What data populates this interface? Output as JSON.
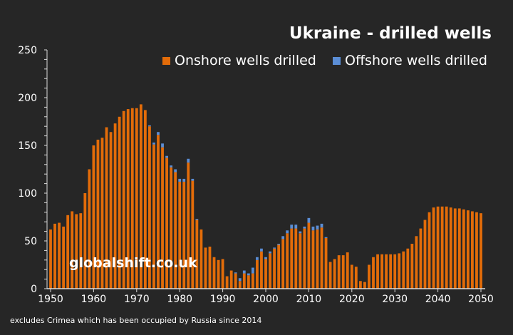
{
  "chart_data": {
    "type": "bar",
    "stacked": true,
    "title": "Ukraine - drilled wells",
    "xlabel": "",
    "ylabel": "",
    "ylim": [
      0,
      250
    ],
    "xlim": [
      1950,
      2050
    ],
    "y_ticks": [
      "0",
      "50",
      "100",
      "150",
      "200",
      "250"
    ],
    "x_ticks": [
      "1950",
      "1960",
      "1970",
      "1980",
      "1990",
      "2000",
      "2010",
      "2020",
      "2030",
      "2040",
      "2050"
    ],
    "grid": false,
    "legend": "top-right",
    "x": [
      1950,
      1951,
      1952,
      1953,
      1954,
      1955,
      1956,
      1957,
      1958,
      1959,
      1960,
      1961,
      1962,
      1963,
      1964,
      1965,
      1966,
      1967,
      1968,
      1969,
      1970,
      1971,
      1972,
      1973,
      1974,
      1975,
      1976,
      1977,
      1978,
      1979,
      1980,
      1981,
      1982,
      1983,
      1984,
      1985,
      1986,
      1987,
      1988,
      1989,
      1990,
      1991,
      1992,
      1993,
      1994,
      1995,
      1996,
      1997,
      1998,
      1999,
      2000,
      2001,
      2002,
      2003,
      2004,
      2005,
      2006,
      2007,
      2008,
      2009,
      2010,
      2011,
      2012,
      2013,
      2014,
      2015,
      2016,
      2017,
      2018,
      2019,
      2020,
      2021,
      2022,
      2023,
      2024,
      2025,
      2026,
      2027,
      2028,
      2029,
      2030,
      2031,
      2032,
      2033,
      2034,
      2035,
      2036,
      2037,
      2038,
      2039,
      2040,
      2041,
      2042,
      2043,
      2044,
      2045,
      2046,
      2047,
      2048,
      2049,
      2050
    ],
    "series": [
      {
        "name": "Onshore wells drilled",
        "color": "#E36C09",
        "values": [
          62,
          68,
          69,
          65,
          77,
          81,
          78,
          79,
          100,
          125,
          150,
          156,
          158,
          169,
          164,
          173,
          180,
          186,
          188,
          189,
          189,
          193,
          187,
          170,
          151,
          161,
          148,
          137,
          127,
          122,
          112,
          112,
          132,
          113,
          72,
          62,
          43,
          44,
          33,
          30,
          31,
          13,
          19,
          16,
          8,
          16,
          14,
          16,
          30,
          39,
          31,
          37,
          42,
          46,
          52,
          58,
          63,
          63,
          58,
          63,
          69,
          61,
          62,
          64,
          53,
          28,
          31,
          35,
          35,
          38,
          25,
          23,
          8,
          7,
          25,
          33,
          36,
          36,
          36,
          36,
          36,
          37,
          39,
          42,
          47,
          55,
          63,
          72,
          80,
          85,
          86,
          86,
          86,
          85,
          84,
          84,
          83,
          82,
          81,
          80,
          79
        ]
      },
      {
        "name": "Offshore wells drilled",
        "color": "#5B8ED6",
        "values": [
          0,
          0,
          0,
          0,
          0,
          0,
          0,
          0,
          0,
          0,
          0,
          0,
          0,
          0,
          0,
          0,
          0,
          0,
          0,
          0,
          0,
          0,
          0,
          1,
          2,
          3,
          4,
          2,
          2,
          3,
          3,
          3,
          4,
          2,
          1,
          0,
          0,
          0,
          0,
          0,
          0,
          0,
          0,
          1,
          3,
          3,
          2,
          6,
          3,
          3,
          2,
          2,
          1,
          1,
          3,
          3,
          4,
          4,
          2,
          2,
          5,
          4,
          4,
          4,
          1,
          0,
          0,
          0,
          0,
          0,
          0,
          0,
          0,
          0,
          0,
          0,
          0,
          0,
          0,
          0,
          0,
          0,
          0,
          0,
          0,
          0,
          0,
          0,
          0,
          0,
          0,
          0,
          0,
          0,
          0,
          0,
          0,
          0,
          0,
          0,
          0
        ]
      }
    ]
  },
  "watermark": "globalshift.co.uk",
  "footnote": "excludes Crimea which has been occupied by Russia since 2014"
}
